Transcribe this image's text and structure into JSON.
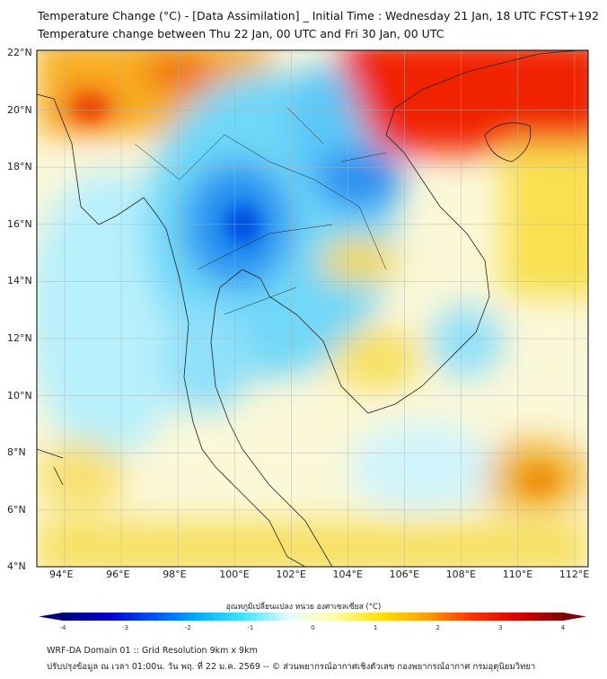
{
  "title_line1": "Temperature Change (°C) - [Data Assimilation] _ Initial Time : Wednesday 21 Jan, 18 UTC FCST+192",
  "title_line2": "Temperature change between Thu 22 Jan, 00 UTC and Fri 30 Jan, 00 UTC",
  "lat_labels": [
    "22°N",
    "20°N",
    "18°N",
    "16°N",
    "14°N",
    "12°N",
    "10°N",
    "8°N",
    "6°N",
    "4°N"
  ],
  "lon_labels": [
    "94°E",
    "96°E",
    "98°E",
    "100°E",
    "102°E",
    "104°E",
    "106°E",
    "108°E",
    "110°E",
    "112°E"
  ],
  "colorbar": {
    "title": "อุณหภูมิเปลี่ยนแปลง หน่วย องศาเซลเซียส (°C)",
    "ticks": [
      "-4",
      "-3",
      "-2",
      "-1",
      "0",
      "1",
      "2",
      "3",
      "4"
    ],
    "range": [
      -4,
      4
    ],
    "colors": [
      "#00007f",
      "#0000d0",
      "#0050ff",
      "#00b0ff",
      "#40e8ff",
      "#e8fcff",
      "#ffffa0",
      "#ffe000",
      "#ffa000",
      "#ff3000",
      "#e00000",
      "#7f0000"
    ]
  },
  "footer_line1": "WRF-DA Domain 01 :: Grid Resolution 9km x 9km",
  "footer_line2": "ปรับปรุงข้อมูล ณ เวลา 01:00น. วัน พฤ. ที่ 22 ม.ค. 2569 -- © ส่วนพยากรณ์อากาศเชิงตัวเลข กองพยากรณ์อากาศ กรมอุตุนิยมวิทยา"
}
